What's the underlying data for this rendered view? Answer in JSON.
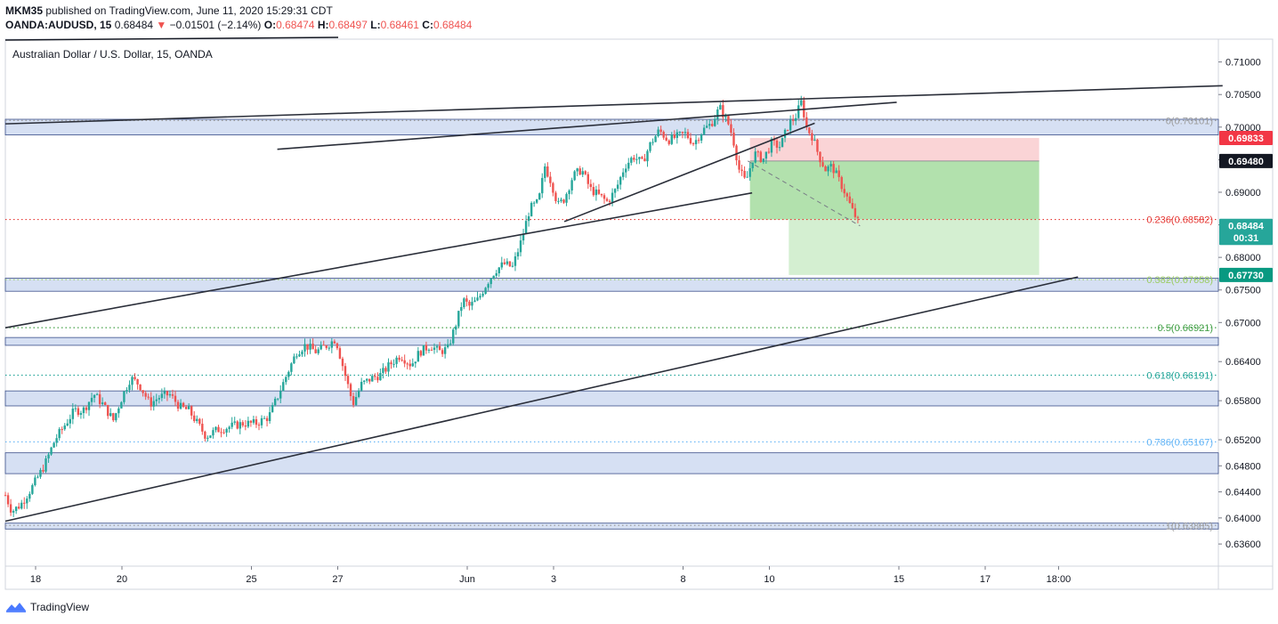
{
  "header": {
    "publisher": "MKM35",
    "published_text": " published on TradingView.com, June 11, 2020 15:29:31 CDT",
    "symbol": "OANDA:AUDUSD, 15",
    "last": "0.68484",
    "arrow": "▼",
    "change": "−0.01501 (−2.14%)",
    "o_label": "O:",
    "o_value": "0.68474",
    "h_label": "H:",
    "h_value": "0.68497",
    "l_label": "L:",
    "l_value": "0.68461",
    "c_label": "C:",
    "c_value": "0.68484"
  },
  "chart_title": "Australian Dollar / U.S. Dollar, 15, OANDA",
  "footer": {
    "brand": "TradingView"
  },
  "colors": {
    "up": "#26a69a",
    "down": "#ef5350",
    "zone_fill": "#c8d5ef",
    "zone_stroke": "#3b4f8a",
    "stop_zone": "#f9c9cc",
    "target_zone": "#a5dc9f",
    "target_zone_light": "#d2eecf",
    "trendline": "#2a2e39",
    "price_axis_bg": "#ffffff"
  },
  "chart_data": {
    "type": "candlestick",
    "y_range": [
      0.6326,
      0.7135
    ],
    "x_range_days": [
      17.5,
      20.3
    ],
    "price_ticks": [
      "0.71000",
      "0.70500",
      "0.70000",
      "0.69500",
      "0.69000",
      "0.68500",
      "0.68000",
      "0.67500",
      "0.67000",
      "0.66400",
      "0.65800",
      "0.65200",
      "0.64800",
      "0.64400",
      "0.64000",
      "0.63600"
    ],
    "price_tick_values": [
      0.71,
      0.705,
      0.7,
      0.695,
      0.69,
      0.685,
      0.68,
      0.675,
      0.67,
      0.664,
      0.658,
      0.652,
      0.648,
      0.644,
      0.64,
      0.636
    ],
    "time_ticks": [
      {
        "label": "18",
        "t": 0.0
      },
      {
        "label": "20",
        "t": 2.0
      },
      {
        "label": "25",
        "t": 5.0
      },
      {
        "label": "27",
        "t": 7.0
      },
      {
        "label": "Jun",
        "t": 10.0
      },
      {
        "label": "3",
        "t": 12.0
      },
      {
        "label": "8",
        "t": 15.0
      },
      {
        "label": "10",
        "t": 17.0
      },
      {
        "label": "15",
        "t": 20.0
      },
      {
        "label": "17",
        "t": 22.0
      },
      {
        "label": "18:00",
        "t": 23.7
      }
    ],
    "price_path": [
      [
        -0.7,
        0.6435
      ],
      [
        -0.55,
        0.641
      ],
      [
        -0.35,
        0.642
      ],
      [
        -0.1,
        0.6445
      ],
      [
        0.2,
        0.648
      ],
      [
        0.45,
        0.652
      ],
      [
        0.7,
        0.6545
      ],
      [
        0.9,
        0.6565
      ],
      [
        1.1,
        0.6565
      ],
      [
        1.35,
        0.659
      ],
      [
        1.55,
        0.6575
      ],
      [
        1.8,
        0.655
      ],
      [
        2.0,
        0.6585
      ],
      [
        2.2,
        0.6615
      ],
      [
        2.4,
        0.6605
      ],
      [
        2.65,
        0.6575
      ],
      [
        2.85,
        0.6585
      ],
      [
        3.1,
        0.659
      ],
      [
        3.35,
        0.657
      ],
      [
        3.55,
        0.6565
      ],
      [
        3.75,
        0.6545
      ],
      [
        3.95,
        0.6525
      ],
      [
        4.2,
        0.6535
      ],
      [
        4.5,
        0.654
      ],
      [
        4.8,
        0.6545
      ],
      [
        5.1,
        0.6545
      ],
      [
        5.4,
        0.6555
      ],
      [
        5.6,
        0.6585
      ],
      [
        5.85,
        0.6625
      ],
      [
        6.05,
        0.6655
      ],
      [
        6.25,
        0.6665
      ],
      [
        6.5,
        0.6655
      ],
      [
        6.75,
        0.6665
      ],
      [
        6.95,
        0.6675
      ],
      [
        7.15,
        0.6625
      ],
      [
        7.35,
        0.6575
      ],
      [
        7.55,
        0.6605
      ],
      [
        7.8,
        0.6615
      ],
      [
        8.0,
        0.662
      ],
      [
        8.2,
        0.6635
      ],
      [
        8.45,
        0.665
      ],
      [
        8.7,
        0.6635
      ],
      [
        8.9,
        0.6655
      ],
      [
        9.15,
        0.6665
      ],
      [
        9.35,
        0.6655
      ],
      [
        9.55,
        0.666
      ],
      [
        9.75,
        0.67
      ],
      [
        9.9,
        0.6735
      ],
      [
        10.05,
        0.6725
      ],
      [
        10.25,
        0.6735
      ],
      [
        10.45,
        0.676
      ],
      [
        10.65,
        0.678
      ],
      [
        10.85,
        0.679
      ],
      [
        11.05,
        0.6785
      ],
      [
        11.25,
        0.6825
      ],
      [
        11.45,
        0.6875
      ],
      [
        11.65,
        0.6885
      ],
      [
        11.8,
        0.694
      ],
      [
        11.95,
        0.6915
      ],
      [
        12.1,
        0.688
      ],
      [
        12.25,
        0.689
      ],
      [
        12.45,
        0.6925
      ],
      [
        12.65,
        0.6935
      ],
      [
        12.85,
        0.6905
      ],
      [
        13.05,
        0.6895
      ],
      [
        13.25,
        0.6885
      ],
      [
        13.45,
        0.6905
      ],
      [
        13.65,
        0.694
      ],
      [
        13.85,
        0.6955
      ],
      [
        14.05,
        0.6945
      ],
      [
        14.25,
        0.6975
      ],
      [
        14.45,
        0.6995
      ],
      [
        14.65,
        0.698
      ],
      [
        14.85,
        0.6985
      ],
      [
        15.05,
        0.699
      ],
      [
        15.25,
        0.6975
      ],
      [
        15.45,
        0.6995
      ],
      [
        15.65,
        0.7005
      ],
      [
        15.85,
        0.703
      ],
      [
        16.05,
        0.7005
      ],
      [
        16.15,
        0.6985
      ],
      [
        16.3,
        0.6935
      ],
      [
        16.45,
        0.6915
      ],
      [
        16.65,
        0.696
      ],
      [
        16.85,
        0.695
      ],
      [
        17.05,
        0.6975
      ],
      [
        17.25,
        0.697
      ],
      [
        17.45,
        0.7005
      ],
      [
        17.6,
        0.7015
      ],
      [
        17.75,
        0.704
      ],
      [
        17.85,
        0.7
      ],
      [
        18.0,
        0.6985
      ],
      [
        18.15,
        0.6955
      ],
      [
        18.3,
        0.6935
      ],
      [
        18.45,
        0.694
      ],
      [
        18.6,
        0.692
      ],
      [
        18.75,
        0.69
      ],
      [
        18.9,
        0.6875
      ],
      [
        19.0,
        0.6862
      ],
      [
        19.1,
        0.6848
      ]
    ],
    "fib_levels": [
      {
        "ratio": "0",
        "value": 0.70101,
        "label": "0(0.70101)",
        "color": "#9e9e9e"
      },
      {
        "ratio": "0.236",
        "value": 0.68582,
        "label": "0.236(0.68582)",
        "color": "#e53935"
      },
      {
        "ratio": "0.382",
        "value": 0.67658,
        "label": "0.382(0.67658)",
        "color": "#9ccc65"
      },
      {
        "ratio": "0.5",
        "value": 0.66921,
        "label": "0.5(0.66921)",
        "color": "#43a047"
      },
      {
        "ratio": "0.618",
        "value": 0.66191,
        "label": "0.618(0.66191)",
        "color": "#26a69a"
      },
      {
        "ratio": "0.786",
        "value": 0.65167,
        "label": "0.786(0.65167)",
        "color": "#64b5f6"
      },
      {
        "ratio": "1",
        "value": 0.63885,
        "label": "1(0.63885)",
        "color": "#9e9e9e"
      }
    ],
    "zones": [
      {
        "top": 0.7012,
        "bottom": 0.6988
      },
      {
        "top": 0.6768,
        "bottom": 0.6748
      },
      {
        "top": 0.6677,
        "bottom": 0.6665
      },
      {
        "top": 0.6595,
        "bottom": 0.6572
      },
      {
        "top": 0.65,
        "bottom": 0.6468
      },
      {
        "top": 0.6392,
        "bottom": 0.6383
      }
    ],
    "position": {
      "entry": 0.6948,
      "stop": 0.69833,
      "target": 0.6773,
      "t_start": 16.55,
      "t_end": 23.25,
      "t_mid": 17.45
    },
    "trendlines": [
      {
        "t1": -0.7,
        "p1": 0.7005,
        "t2": 27.5,
        "p2": 0.70635
      },
      {
        "t1": -0.7,
        "p1": 0.6692,
        "t2": 16.6,
        "p2": 0.6899
      },
      {
        "t1": 12.25,
        "p1": 0.6855,
        "t2": 18.05,
        "p2": 0.7006
      },
      {
        "t1": 5.6,
        "p1": 0.6966,
        "t2": 19.95,
        "p2": 0.7038
      },
      {
        "t1": -0.7,
        "p1": 0.6395,
        "t2": 24.15,
        "p2": 0.677
      },
      {
        "t1": 16.5,
        "p1": 0.6948,
        "t2": 19.1,
        "p2": 0.68484,
        "dashed": true
      }
    ],
    "price_labels": [
      {
        "text": "0.69833",
        "value": 0.69833,
        "bg": "#f23645",
        "fg": "#ffffff"
      },
      {
        "text": "0.69480",
        "value": 0.6948,
        "bg": "#131722",
        "fg": "#ffffff"
      },
      {
        "text": "0.68484",
        "value": 0.68484,
        "bg": "#26a69a",
        "fg": "#ffffff"
      },
      {
        "text": "00:31",
        "value": 0.683,
        "bg": "#26a69a",
        "fg": "#ffffff"
      },
      {
        "text": "0.67730",
        "value": 0.6773,
        "bg": "#089981",
        "fg": "#ffffff"
      }
    ]
  }
}
